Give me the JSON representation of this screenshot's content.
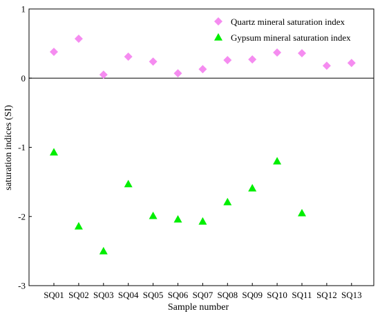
{
  "chart_data": {
    "type": "scatter",
    "xlabel": "Sample number",
    "ylabel": "saturation indices (SI)",
    "ylim": [
      -3,
      1
    ],
    "yticks": [
      "-3",
      "-2",
      "-1",
      "0",
      "1"
    ],
    "categories": [
      "SQ01",
      "SQ02",
      "SQ03",
      "SQ04",
      "SQ05",
      "SQ06",
      "SQ07",
      "SQ08",
      "SQ09",
      "SQ10",
      "SQ11",
      "SQ12",
      "SQ13"
    ],
    "zero_line": true,
    "legend_position": "top-right",
    "series": [
      {
        "name": "Quartz mineral saturation index",
        "marker": "diamond",
        "color": "#f58cf0",
        "values": [
          0.38,
          0.57,
          0.05,
          0.31,
          0.24,
          0.07,
          0.13,
          0.26,
          0.27,
          0.37,
          0.36,
          0.18,
          0.22
        ]
      },
      {
        "name": "Gypsum mineral saturation index",
        "marker": "triangle",
        "color": "#00ee00",
        "values": [
          -1.07,
          -2.14,
          -2.5,
          -1.53,
          -1.99,
          -2.04,
          -2.07,
          -1.79,
          -1.59,
          -1.2,
          -1.95,
          null,
          null
        ]
      }
    ]
  }
}
